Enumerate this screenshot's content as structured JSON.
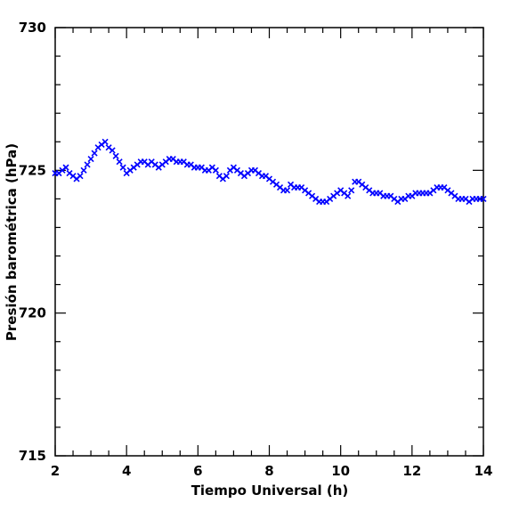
{
  "chart_data": {
    "type": "scatter",
    "xlabel": "Tiempo Universal (h)",
    "ylabel": "Presión barométrica (hPa)",
    "xlim": [
      2,
      14
    ],
    "ylim": [
      715,
      730
    ],
    "x_ticks": [
      2,
      4,
      6,
      8,
      10,
      12,
      14
    ],
    "y_ticks": [
      715,
      720,
      725,
      730
    ],
    "x_tick_labels": [
      "2",
      "4",
      "6",
      "8",
      "10",
      "12",
      "14"
    ],
    "y_tick_labels": [
      "715",
      "720",
      "725",
      "730"
    ],
    "marker": "x",
    "marker_color": "#0000ff",
    "grid": false,
    "series": [
      {
        "x": [
          2.0,
          2.1,
          2.2,
          2.3,
          2.4,
          2.5,
          2.6,
          2.7,
          2.8,
          2.9,
          3.0,
          3.1,
          3.2,
          3.3,
          3.4,
          3.5,
          3.6,
          3.7,
          3.8,
          3.9,
          4.0,
          4.1,
          4.2,
          4.3,
          4.4,
          4.5,
          4.6,
          4.7,
          4.8,
          4.9,
          5.0,
          5.1,
          5.2,
          5.3,
          5.4,
          5.5,
          5.6,
          5.7,
          5.8,
          5.9,
          6.0,
          6.1,
          6.2,
          6.3,
          6.4,
          6.5,
          6.6,
          6.7,
          6.8,
          6.9,
          7.0,
          7.1,
          7.2,
          7.3,
          7.4,
          7.5,
          7.6,
          7.7,
          7.8,
          7.9,
          8.0,
          8.1,
          8.2,
          8.3,
          8.4,
          8.5,
          8.6,
          8.7,
          8.8,
          8.9,
          9.0,
          9.1,
          9.2,
          9.3,
          9.4,
          9.5,
          9.6,
          9.7,
          9.8,
          9.9,
          10.0,
          10.1,
          10.2,
          10.3,
          10.4,
          10.5,
          10.6,
          10.7,
          10.8,
          10.9,
          11.0,
          11.1,
          11.2,
          11.3,
          11.4,
          11.5,
          11.6,
          11.7,
          11.8,
          11.9,
          12.0,
          12.1,
          12.2,
          12.3,
          12.4,
          12.5,
          12.6,
          12.7,
          12.8,
          12.9,
          13.0,
          13.1,
          13.2,
          13.3,
          13.4,
          13.5,
          13.6,
          13.7,
          13.8,
          13.9,
          14.0
        ],
        "y": [
          724.9,
          724.9,
          725.0,
          725.1,
          724.9,
          724.8,
          724.7,
          724.8,
          725.0,
          725.2,
          725.4,
          725.6,
          725.8,
          725.9,
          726.0,
          725.8,
          725.7,
          725.5,
          725.3,
          725.1,
          724.9,
          725.0,
          725.1,
          725.2,
          725.3,
          725.3,
          725.2,
          725.3,
          725.2,
          725.1,
          725.2,
          725.3,
          725.4,
          725.4,
          725.3,
          725.3,
          725.3,
          725.2,
          725.2,
          725.1,
          725.1,
          725.1,
          725.0,
          725.0,
          725.1,
          725.0,
          724.8,
          724.7,
          724.8,
          725.0,
          725.1,
          725.0,
          724.9,
          724.8,
          724.9,
          725.0,
          725.0,
          724.9,
          724.8,
          724.8,
          724.7,
          724.6,
          724.5,
          724.4,
          724.3,
          724.3,
          724.5,
          724.4,
          724.4,
          724.4,
          724.3,
          724.2,
          724.1,
          724.0,
          723.9,
          723.9,
          723.9,
          724.0,
          724.1,
          724.2,
          724.3,
          724.2,
          724.1,
          724.3,
          724.6,
          724.6,
          724.5,
          724.4,
          724.3,
          724.2,
          724.2,
          724.2,
          724.1,
          724.1,
          724.1,
          724.0,
          723.9,
          724.0,
          724.0,
          724.1,
          724.1,
          724.2,
          724.2,
          724.2,
          724.2,
          724.2,
          724.3,
          724.4,
          724.4,
          724.4,
          724.3,
          724.2,
          724.1,
          724.0,
          724.0,
          724.0,
          723.9,
          724.0,
          724.0,
          724.0,
          724.0
        ]
      }
    ]
  }
}
